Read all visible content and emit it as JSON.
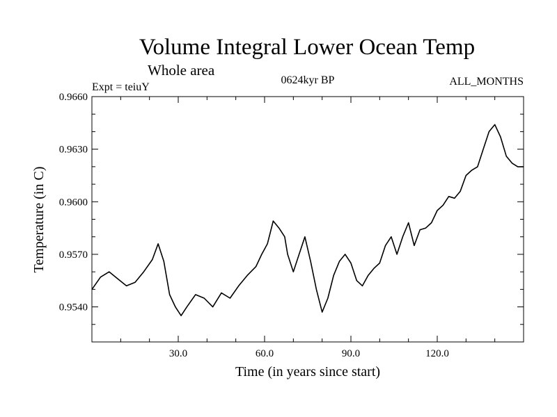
{
  "chart_data": {
    "type": "line",
    "title": "Volume Integral Lower Ocean Temp",
    "subtitle": "Whole area",
    "experiment": "Expt = teiuY",
    "period": "0624kyr BP",
    "months": "ALL_MONTHS",
    "xlabel": "Time (in years since start)",
    "ylabel": "Temperature (in C)",
    "xlim": [
      0,
      150
    ],
    "ylim": [
      0.952,
      0.966
    ],
    "x_ticks": [
      30.0,
      60.0,
      90.0,
      120.0
    ],
    "x_tick_labels": [
      "30.0",
      "60.0",
      "90.0",
      "120.0"
    ],
    "y_ticks": [
      0.954,
      0.957,
      0.96,
      0.963,
      0.966
    ],
    "y_tick_labels": [
      "0.9540",
      "0.9570",
      "0.9600",
      "0.9630",
      "0.9660"
    ],
    "grid": false,
    "series": [
      {
        "name": "Volume Integral Lower Ocean Temp",
        "color": "#000000",
        "x": [
          0,
          3,
          6,
          9,
          12,
          15,
          18,
          21,
          23,
          25,
          27,
          29,
          31,
          33,
          36,
          39,
          42,
          45,
          48,
          51,
          54,
          57,
          59,
          61,
          63,
          65,
          67,
          68,
          70,
          72,
          74,
          76,
          78,
          80,
          82,
          84,
          86,
          88,
          90,
          92,
          94,
          96,
          98,
          100,
          102,
          104,
          106,
          108,
          110,
          112,
          114,
          116,
          118,
          120,
          122,
          124,
          126,
          128,
          130,
          132,
          134,
          136,
          138,
          140,
          142,
          144,
          146,
          148,
          150
        ],
        "values": [
          0.955,
          0.9557,
          0.956,
          0.9556,
          0.9552,
          0.9554,
          0.956,
          0.9567,
          0.9576,
          0.9566,
          0.9547,
          0.954,
          0.9535,
          0.954,
          0.9547,
          0.9545,
          0.954,
          0.9548,
          0.9545,
          0.9552,
          0.9558,
          0.9563,
          0.957,
          0.9576,
          0.9589,
          0.9585,
          0.958,
          0.957,
          0.956,
          0.957,
          0.958,
          0.9566,
          0.955,
          0.9537,
          0.9545,
          0.9558,
          0.9566,
          0.957,
          0.9565,
          0.9555,
          0.9552,
          0.9558,
          0.9562,
          0.9565,
          0.9575,
          0.958,
          0.957,
          0.958,
          0.9588,
          0.9575,
          0.9584,
          0.9585,
          0.9588,
          0.9595,
          0.9598,
          0.9603,
          0.9602,
          0.9606,
          0.9615,
          0.9618,
          0.962,
          0.963,
          0.964,
          0.9644,
          0.9637,
          0.9626,
          0.9622,
          0.962,
          0.962
        ]
      }
    ]
  }
}
